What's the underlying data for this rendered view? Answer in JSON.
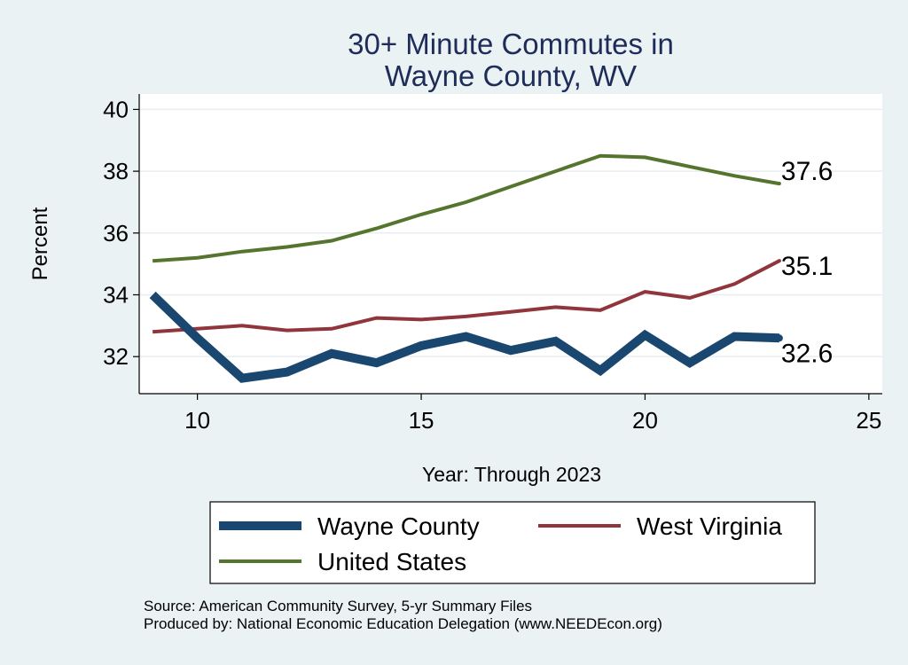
{
  "chart_data": {
    "type": "line",
    "title_lines": [
      "30+ Minute Commutes in",
      "Wayne County, WV"
    ],
    "xlabel": "Year: Through 2023",
    "ylabel": "Percent",
    "xlim": [
      8.7,
      25.3
    ],
    "ylim": [
      30.8,
      40.5
    ],
    "x_ticks": [
      10,
      15,
      20,
      25
    ],
    "y_ticks": [
      32,
      34,
      36,
      38,
      40
    ],
    "grid": true,
    "legend_position": "bottom",
    "x": [
      9,
      10,
      11,
      12,
      13,
      14,
      15,
      16,
      17,
      18,
      19,
      20,
      21,
      22,
      23
    ],
    "series": [
      {
        "name": "Wayne County",
        "color": "#1a476f",
        "width": 10,
        "values": [
          34.0,
          32.6,
          31.3,
          31.5,
          32.1,
          31.8,
          32.35,
          32.65,
          32.2,
          32.5,
          31.55,
          32.7,
          31.8,
          32.65,
          32.6
        ],
        "end_label": "32.6"
      },
      {
        "name": "West Virginia",
        "color": "#90353b",
        "width": 4,
        "values": [
          32.8,
          32.9,
          33.0,
          32.85,
          32.9,
          33.25,
          33.2,
          33.3,
          33.45,
          33.6,
          33.5,
          34.1,
          33.9,
          34.35,
          35.1
        ],
        "end_label": "35.1"
      },
      {
        "name": "United States",
        "color": "#55752f",
        "width": 4,
        "values": [
          35.1,
          35.2,
          35.4,
          35.55,
          35.75,
          36.15,
          36.6,
          37.0,
          37.5,
          38.0,
          38.5,
          38.45,
          38.15,
          37.85,
          37.6
        ],
        "end_label": "37.6"
      }
    ],
    "source_lines": [
      "Source: American Community Survey, 5-yr Summary Files",
      "Produced by: National Economic Education Delegation (www.NEEDEcon.org)"
    ]
  }
}
